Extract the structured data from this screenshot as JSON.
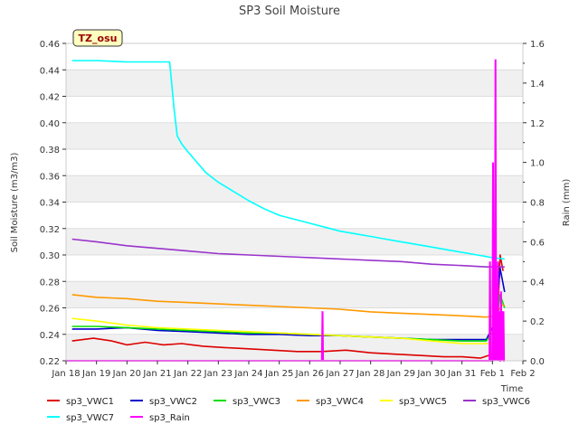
{
  "chart_data": {
    "type": "line",
    "title": "SP3 Soil Moisture",
    "ylabel": "Soil Moisture (m3/m3)",
    "y2label": "Rain (mm)",
    "xlabel": "Time",
    "badge": "TZ_osu",
    "x_range": [
      "2024-01-18",
      "2024-02-02"
    ],
    "x_tick_labels": [
      "Jan 18",
      "Jan 19",
      "Jan 20",
      "Jan 21",
      "Jan 22",
      "Jan 23",
      "Jan 24",
      "Jan 25",
      "Jan 26",
      "Jan 27",
      "Jan 28",
      "Jan 29",
      "Jan 30",
      "Jan 31",
      "Feb 1",
      "Feb 2"
    ],
    "ylim": [
      0.22,
      0.46
    ],
    "y_ticks": [
      0.22,
      0.24,
      0.26,
      0.28,
      0.3,
      0.32,
      0.34,
      0.36,
      0.38,
      0.4,
      0.42,
      0.44,
      0.46
    ],
    "y_tick_labels": [
      "0.22",
      "0.24",
      "0.26",
      "0.28",
      "0.30",
      "0.32",
      "0.34",
      "0.36",
      "0.38",
      "0.40",
      "0.42",
      "0.44",
      "0.46"
    ],
    "y2lim": [
      0.0,
      1.6
    ],
    "y2_ticks": [
      0.0,
      0.2,
      0.4,
      0.6,
      0.8,
      1.0,
      1.2,
      1.4,
      1.6
    ],
    "y2_tick_labels": [
      "0.0",
      "0.2",
      "0.4",
      "0.6",
      "0.8",
      "1.0",
      "1.2",
      "1.4",
      "1.6"
    ],
    "grid": "horizontal bands",
    "legend_placement": "bottom",
    "series": [
      {
        "name": "sp3_VWC1",
        "color": "#dd0000",
        "axis": "left",
        "x": [
          0.2,
          0.9,
          1.5,
          2.0,
          2.6,
          3.2,
          3.8,
          4.5,
          5.2,
          6.0,
          6.8,
          7.6,
          8.4,
          9.2,
          10.0,
          10.8,
          11.6,
          12.4,
          13.0,
          13.6,
          14.0,
          14.15,
          14.25,
          14.35
        ],
        "y": [
          0.235,
          0.237,
          0.235,
          0.232,
          0.234,
          0.232,
          0.233,
          0.231,
          0.23,
          0.229,
          0.228,
          0.227,
          0.227,
          0.228,
          0.226,
          0.225,
          0.224,
          0.223,
          0.223,
          0.222,
          0.225,
          0.24,
          0.3,
          0.288
        ]
      },
      {
        "name": "sp3_VWC2",
        "color": "#0000cc",
        "axis": "left",
        "x": [
          0.2,
          1.0,
          2.0,
          3.0,
          4.0,
          5.0,
          6.0,
          7.0,
          8.0,
          9.0,
          10.0,
          11.0,
          12.0,
          13.0,
          13.8,
          14.1,
          14.25,
          14.4
        ],
        "y": [
          0.244,
          0.244,
          0.245,
          0.243,
          0.242,
          0.241,
          0.24,
          0.24,
          0.239,
          0.239,
          0.238,
          0.237,
          0.236,
          0.236,
          0.236,
          0.25,
          0.29,
          0.272
        ]
      },
      {
        "name": "sp3_VWC3",
        "color": "#00dd00",
        "axis": "left",
        "x": [
          0.2,
          1.0,
          2.0,
          3.0,
          4.0,
          5.0,
          6.0,
          7.0,
          8.0,
          9.0,
          10.0,
          11.0,
          12.0,
          13.0,
          13.8,
          14.1,
          14.25,
          14.4
        ],
        "y": [
          0.246,
          0.246,
          0.245,
          0.244,
          0.243,
          0.242,
          0.241,
          0.241,
          0.24,
          0.239,
          0.238,
          0.237,
          0.236,
          0.235,
          0.235,
          0.245,
          0.27,
          0.26
        ]
      },
      {
        "name": "sp3_VWC4",
        "color": "#ff9900",
        "axis": "left",
        "x": [
          0.2,
          1.0,
          2.0,
          3.0,
          4.0,
          5.0,
          6.0,
          7.0,
          8.0,
          9.0,
          10.0,
          11.0,
          12.0,
          13.0,
          13.8,
          14.1,
          14.3,
          14.4
        ],
        "y": [
          0.27,
          0.268,
          0.267,
          0.265,
          0.264,
          0.263,
          0.262,
          0.261,
          0.26,
          0.259,
          0.257,
          0.256,
          0.255,
          0.254,
          0.253,
          0.254,
          0.262,
          0.262
        ]
      },
      {
        "name": "sp3_VWC5",
        "color": "#ffff00",
        "axis": "left",
        "x": [
          0.2,
          1.0,
          2.0,
          3.0,
          4.0,
          5.0,
          6.0,
          7.0,
          8.0,
          9.0,
          10.0,
          11.0,
          12.0,
          13.0,
          13.8,
          14.2,
          14.4
        ],
        "y": [
          0.252,
          0.25,
          0.247,
          0.245,
          0.244,
          0.243,
          0.242,
          0.241,
          0.24,
          0.239,
          0.238,
          0.237,
          0.235,
          0.233,
          0.233,
          0.233,
          0.235
        ]
      },
      {
        "name": "sp3_VWC6",
        "color": "#9933cc",
        "axis": "left",
        "x": [
          0.2,
          1.0,
          2.0,
          3.0,
          4.0,
          5.0,
          6.0,
          7.0,
          8.0,
          9.0,
          10.0,
          11.0,
          12.0,
          13.0,
          13.8,
          14.2,
          14.4
        ],
        "y": [
          0.312,
          0.31,
          0.307,
          0.305,
          0.303,
          0.301,
          0.3,
          0.299,
          0.298,
          0.297,
          0.296,
          0.295,
          0.293,
          0.292,
          0.291,
          0.291,
          0.291
        ]
      },
      {
        "name": "sp3_VWC7",
        "color": "#00ffff",
        "axis": "left",
        "x": [
          0.2,
          1.0,
          2.0,
          3.0,
          3.4,
          3.55,
          3.65,
          3.8,
          4.0,
          4.3,
          4.6,
          5.0,
          5.5,
          6.0,
          6.5,
          7.0,
          7.5,
          8.0,
          8.5,
          9.0,
          9.5,
          10.0,
          10.5,
          11.0,
          11.5,
          12.0,
          12.5,
          13.0,
          13.5,
          14.0,
          14.4
        ],
        "y": [
          0.447,
          0.447,
          0.446,
          0.446,
          0.446,
          0.41,
          0.39,
          0.384,
          0.378,
          0.37,
          0.362,
          0.355,
          0.348,
          0.341,
          0.335,
          0.33,
          0.327,
          0.324,
          0.321,
          0.318,
          0.316,
          0.314,
          0.312,
          0.31,
          0.308,
          0.306,
          0.304,
          0.302,
          0.3,
          0.298,
          0.297
        ]
      },
      {
        "name": "sp3_Rain",
        "color": "#ff00ff",
        "axis": "right",
        "x": [
          0.0,
          8.4,
          8.42,
          8.44,
          8.46,
          13.9,
          13.92,
          13.94,
          13.96,
          14.0,
          14.02,
          14.04,
          14.06,
          14.08,
          14.1,
          14.12,
          14.14,
          14.16,
          14.18,
          14.2,
          14.22,
          14.24,
          14.26,
          14.28,
          14.3,
          14.32,
          14.34,
          14.36,
          14.38,
          14.4
        ],
        "y": [
          0.0,
          0.0,
          0.25,
          0.0,
          0.0,
          0.0,
          0.5,
          0.0,
          0.0,
          0.0,
          1.0,
          0.0,
          0.2,
          0.0,
          1.52,
          0.0,
          0.3,
          0.0,
          0.5,
          0.0,
          0.25,
          0.0,
          0.0,
          0.35,
          0.0,
          0.25,
          0.0,
          0.25,
          0.0,
          0.0
        ]
      }
    ]
  }
}
